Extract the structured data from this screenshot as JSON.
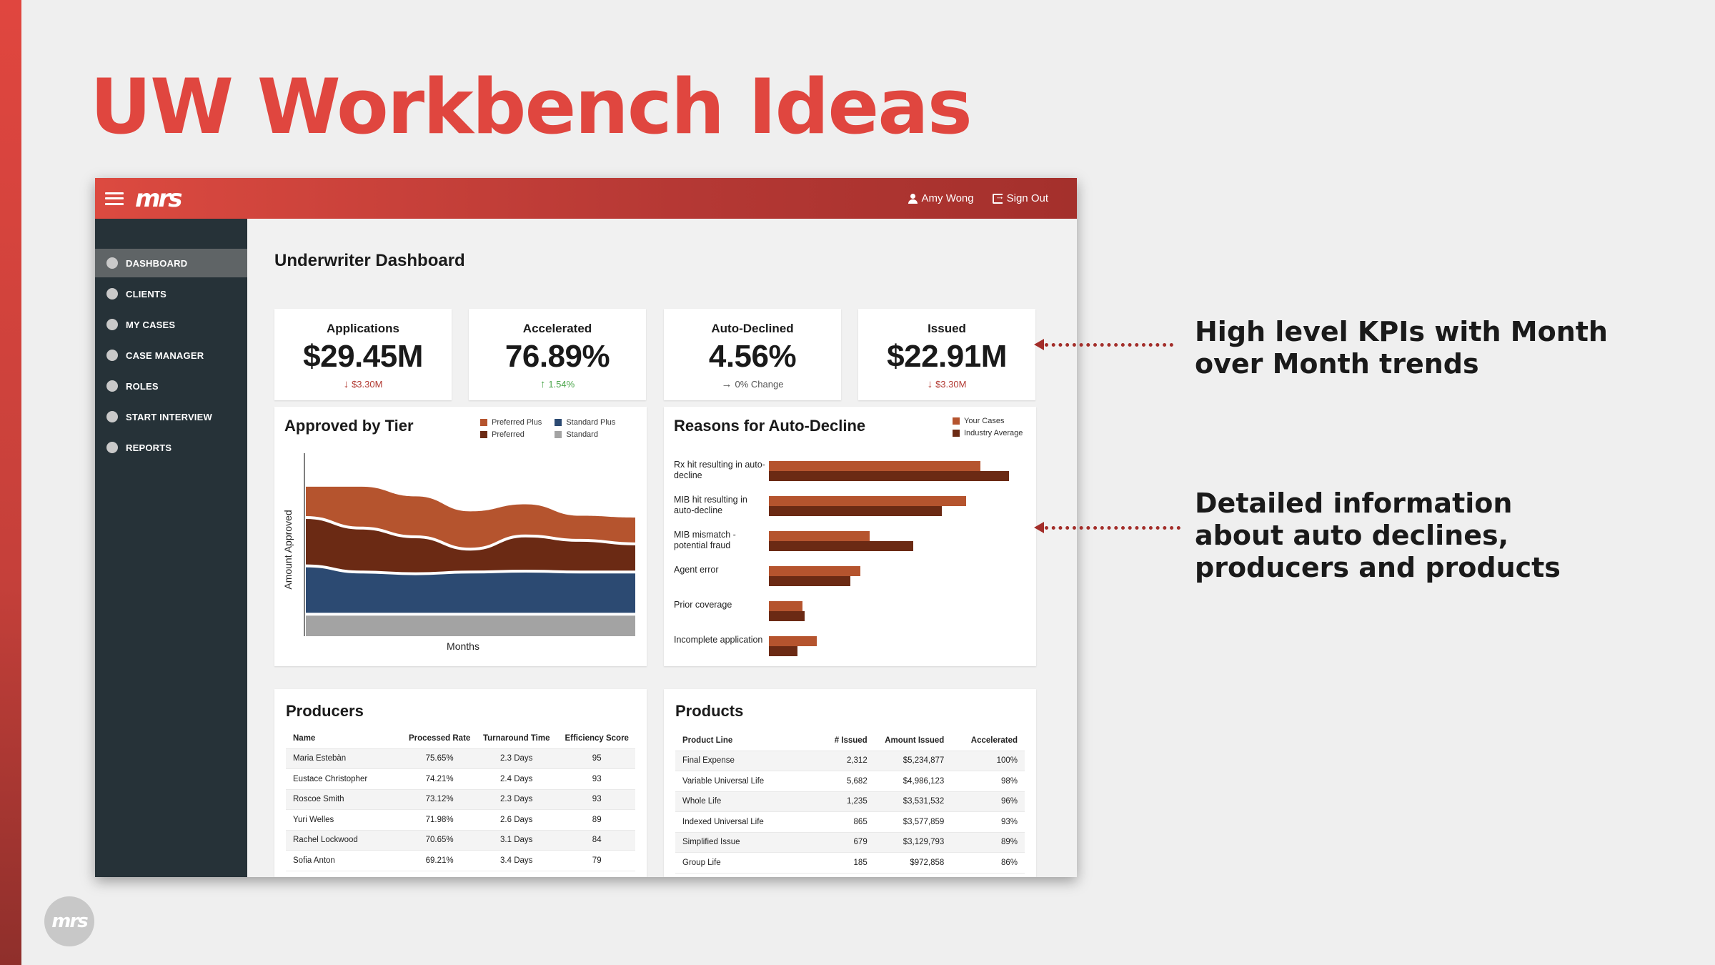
{
  "slide": {
    "title": "UW Workbench Ideas",
    "annotations": [
      "High level KPIs with Month over Month trends",
      "Detailed information about auto declines, producers and products"
    ],
    "annotation_lines": [
      [
        "High level KPIs with Month",
        "over Month trends"
      ],
      [
        "Detailed information",
        "about auto declines,",
        "producers and products"
      ]
    ],
    "corner_logo": "mrs"
  },
  "app": {
    "logo": "mrs",
    "user_name": "Amy Wong",
    "sign_out": "Sign Out",
    "nav": [
      "DASHBOARD",
      "CLIENTS",
      "MY CASES",
      "CASE MANAGER",
      "ROLES",
      "START INTERVIEW",
      "REPORTS"
    ],
    "active_nav": "DASHBOARD",
    "page_title": "Underwriter Dashboard"
  },
  "kpis": [
    {
      "label": "Applications",
      "value": "$29.45M",
      "trend": "$3.30M",
      "direction": "down"
    },
    {
      "label": "Accelerated",
      "value": "76.89%",
      "trend": "1.54%",
      "direction": "up"
    },
    {
      "label": "Auto-Declined",
      "value": "4.56%",
      "trend": "0% Change",
      "direction": "flat"
    },
    {
      "label": "Issued",
      "value": "$22.91M",
      "trend": "$3.30M",
      "direction": "down"
    }
  ],
  "colors": {
    "preferred_plus": "#b5542e",
    "preferred": "#6b2a14",
    "standard_plus": "#2c4a72",
    "standard": "#a3a3a3",
    "your_cases": "#b5542e",
    "industry_average": "#6b2a14",
    "accent": "#e0463f"
  },
  "chart_data": [
    {
      "type": "area",
      "title": "Approved by Tier",
      "xlabel": "Months",
      "ylabel": "Amount Approved",
      "legend_position": "top-right",
      "stacked": true,
      "series": [
        {
          "name": "Standard",
          "values": [
            2.5,
            2.5,
            2.5,
            2.5,
            2.5,
            2.5,
            2.5
          ]
        },
        {
          "name": "Standard Plus",
          "values": [
            5.5,
            4.8,
            4.6,
            4.8,
            4.9,
            4.8,
            4.8
          ]
        },
        {
          "name": "Preferred",
          "values": [
            5.5,
            5.0,
            4.2,
            2.6,
            4.0,
            3.6,
            3.2
          ]
        },
        {
          "name": "Preferred Plus",
          "values": [
            3.5,
            4.7,
            4.6,
            4.3,
            3.6,
            2.8,
            3.0
          ]
        }
      ],
      "ylim": [
        0,
        20
      ]
    },
    {
      "type": "bar",
      "orientation": "horizontal",
      "title": "Reasons for Auto-Decline",
      "legend_position": "top-right",
      "categories": [
        "Rx hit resulting in auto-decline",
        "MIB hit resulting in auto-decline",
        "MIB mismatch - potential fraud",
        "Agent error",
        "Prior coverage",
        "Incomplete application"
      ],
      "series": [
        {
          "name": "Your Cases",
          "values": [
            88,
            82,
            42,
            38,
            14,
            20
          ]
        },
        {
          "name": "Industry Average",
          "values": [
            100,
            72,
            60,
            34,
            15,
            12
          ]
        }
      ],
      "xlim": [
        0,
        100
      ]
    }
  ],
  "producers": {
    "title": "Producers",
    "columns": [
      "Name",
      "Processed Rate",
      "Turnaround Time",
      "Efficiency Score"
    ],
    "rows": [
      [
        "Maria Estebàn",
        "75.65%",
        "2.3 Days",
        "95"
      ],
      [
        "Eustace Christopher",
        "74.21%",
        "2.4 Days",
        "93"
      ],
      [
        "Roscoe Smith",
        "73.12%",
        "2.3 Days",
        "93"
      ],
      [
        "Yuri Welles",
        "71.98%",
        "2.6 Days",
        "89"
      ],
      [
        "Rachel Lockwood",
        "70.65%",
        "3.1 Days",
        "84"
      ],
      [
        "Sofia Anton",
        "69.21%",
        "3.4 Days",
        "79"
      ]
    ]
  },
  "products": {
    "title": "Products",
    "columns": [
      "Product Line",
      "# Issued",
      "Amount Issued",
      "Accelerated"
    ],
    "rows": [
      [
        "Final Expense",
        "2,312",
        "$5,234,877",
        "100%"
      ],
      [
        "Variable Universal Life",
        "5,682",
        "$4,986,123",
        "98%"
      ],
      [
        "Whole Life",
        "1,235",
        "$3,531,532",
        "96%"
      ],
      [
        "Indexed Universal Life",
        "865",
        "$3,577,859",
        "93%"
      ],
      [
        "Simplified Issue",
        "679",
        "$3,129,793",
        "89%"
      ],
      [
        "Group Life",
        "185",
        "$972,858",
        "86%"
      ]
    ]
  }
}
